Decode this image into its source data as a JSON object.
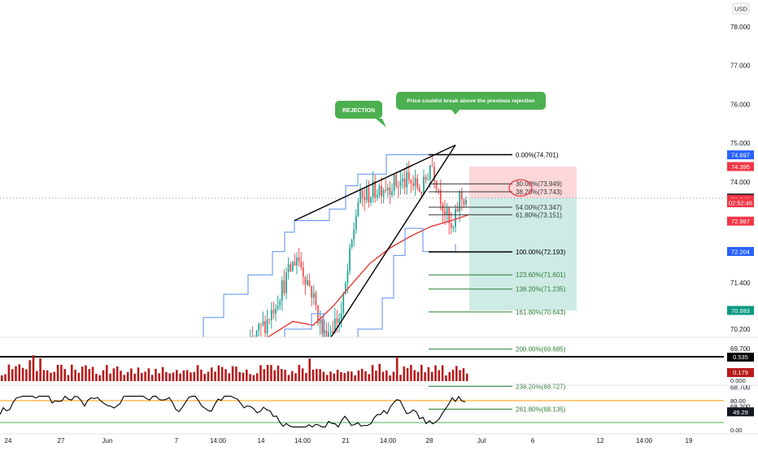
{
  "currency": "USD",
  "colors": {
    "up": "#26a69a",
    "down": "#ef5350",
    "ma": "#e53935",
    "channel": "#5b8def",
    "fib_gray": "#333333",
    "fib_green": "#2e7d32",
    "volume": "#b71c1c",
    "annotation": "#4caf50",
    "current_price": "#000000",
    "sell": "#f23645",
    "buy": "#089981",
    "blue": "#2962ff"
  },
  "price_axis": {
    "ticks": [
      "78.000",
      "77.000",
      "76.000",
      "75.000",
      "74.000",
      "71.400",
      "70.200",
      "69.700",
      "68.700",
      "68.200"
    ],
    "tick_values": [
      78.0,
      77.0,
      76.0,
      75.0,
      74.0,
      71.4,
      70.2,
      69.7,
      68.7,
      68.2
    ],
    "tag_labels": [
      {
        "text": "74.697",
        "value": 74.697,
        "color": "#2962ff"
      },
      {
        "text": "74.395",
        "value": 74.395,
        "color": "#f23645"
      },
      {
        "text": "73.581",
        "value": 73.581,
        "color": "#131722"
      },
      {
        "text": "73.549",
        "value": 73.549,
        "color": "#f23645"
      },
      {
        "text": "02:52:46",
        "value": 73.46,
        "color": "#f23645"
      },
      {
        "text": "72.987",
        "value": 72.987,
        "color": "#f23645"
      },
      {
        "text": "72.204",
        "value": 72.204,
        "color": "#2962ff"
      },
      {
        "text": "70.683",
        "value": 70.683,
        "color": "#089981"
      }
    ]
  },
  "time_axis": {
    "labels": [
      "24",
      "27",
      "Jun",
      "7",
      "14:00",
      "14",
      "14:00",
      "21",
      "14:00",
      "28",
      "Jul",
      "6",
      "12",
      "14:00",
      "19"
    ]
  },
  "annotations": {
    "rejection": "REJECTION",
    "note": "Price couldnt break above the previous rejection"
  },
  "volume_panel": {
    "labels": [
      "0.535",
      "0.179",
      "0.000"
    ]
  },
  "oscillator_panel": {
    "labels": [
      "80.00",
      "49.29",
      "0.00"
    ],
    "levels": [
      80,
      20
    ]
  },
  "chart_data": {
    "type": "candlestick",
    "instrument_currency": "USD",
    "fibonacci_retracement": [
      {
        "label": "0.00%(74.701)",
        "ratio": 0.0,
        "price": 74.701
      },
      {
        "label": "30.00%(73.949)",
        "ratio": 0.3,
        "price": 73.949
      },
      {
        "label": "38.20%(73.743)",
        "ratio": 0.382,
        "price": 73.743
      },
      {
        "label": "54.00%(73.347)",
        "ratio": 0.54,
        "price": 73.347
      },
      {
        "label": "61.80%(73.151)",
        "ratio": 0.618,
        "price": 73.151
      },
      {
        "label": "100.00%(72.193)",
        "ratio": 1.0,
        "price": 72.193
      },
      {
        "label": "123.60%(71.601)",
        "ratio": 1.236,
        "price": 71.601
      },
      {
        "label": "138.20%(71.235)",
        "ratio": 1.382,
        "price": 71.235
      },
      {
        "label": "161.80%(70.643)",
        "ratio": 1.618,
        "price": 70.643
      },
      {
        "label": "200.00%(69.685)",
        "ratio": 2.0,
        "price": 69.685
      },
      {
        "label": "238.20%(68.727)",
        "ratio": 2.382,
        "price": 68.727
      },
      {
        "label": "261.80%(68.135)",
        "ratio": 2.618,
        "price": 68.135
      }
    ],
    "short_position": {
      "entry": 73.581,
      "stop": 74.395,
      "target": 70.683
    },
    "current_price": 73.581
  }
}
